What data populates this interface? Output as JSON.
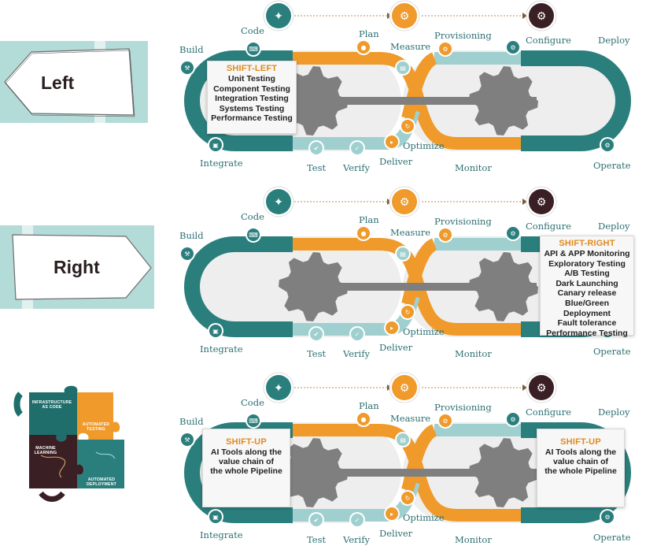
{
  "signs": {
    "left": "Left",
    "right": "Right"
  },
  "stages": {
    "build": "Build",
    "code": "Code",
    "plan": "Plan",
    "measure": "Measure",
    "provisioning": "Provisioning",
    "configure": "Configure",
    "deploy": "Deploy",
    "integrate": "Integrate",
    "test": "Test",
    "verify": "Verify",
    "deliver": "Deliver",
    "optimize": "Optimize",
    "monitor": "Monitor",
    "operate": "Operate"
  },
  "shift_left": {
    "title": "SHIFT-LEFT",
    "items": [
      "Unit Testing",
      "Component Testing",
      "Integration Testing",
      "Systems Testing",
      "Performance Testing"
    ]
  },
  "shift_right": {
    "title": "SHIFT-RIGHT",
    "items": [
      "API & APP Monitoring",
      "Exploratory Testing",
      "A/B Testing",
      "Dark Launching",
      "Canary release",
      "Blue/Green Deployment",
      "Fault tolerance",
      "Performance Testing"
    ]
  },
  "shift_up": {
    "title": "SHIFT-UP",
    "lines": [
      "AI Tools along the",
      "value chain of",
      "the whole Pipeline"
    ]
  },
  "puzzle": {
    "infrastructure": [
      "INFRASTRUCTURE",
      "AS CODE"
    ],
    "testing": [
      "AUTOMATED",
      "TESTING"
    ],
    "ml": [
      "MACHINE",
      "LEARNING"
    ],
    "deployment": [
      "AUTOMATED",
      "DEPLOYMENT"
    ]
  },
  "colors": {
    "teal": "#2a7f7d",
    "light_teal": "#9fd0cf",
    "orange": "#ef9a2a",
    "gray": "#7f7f7f",
    "dark_maroon": "#3a1f24",
    "sign_bg": "#b3dcd8"
  }
}
